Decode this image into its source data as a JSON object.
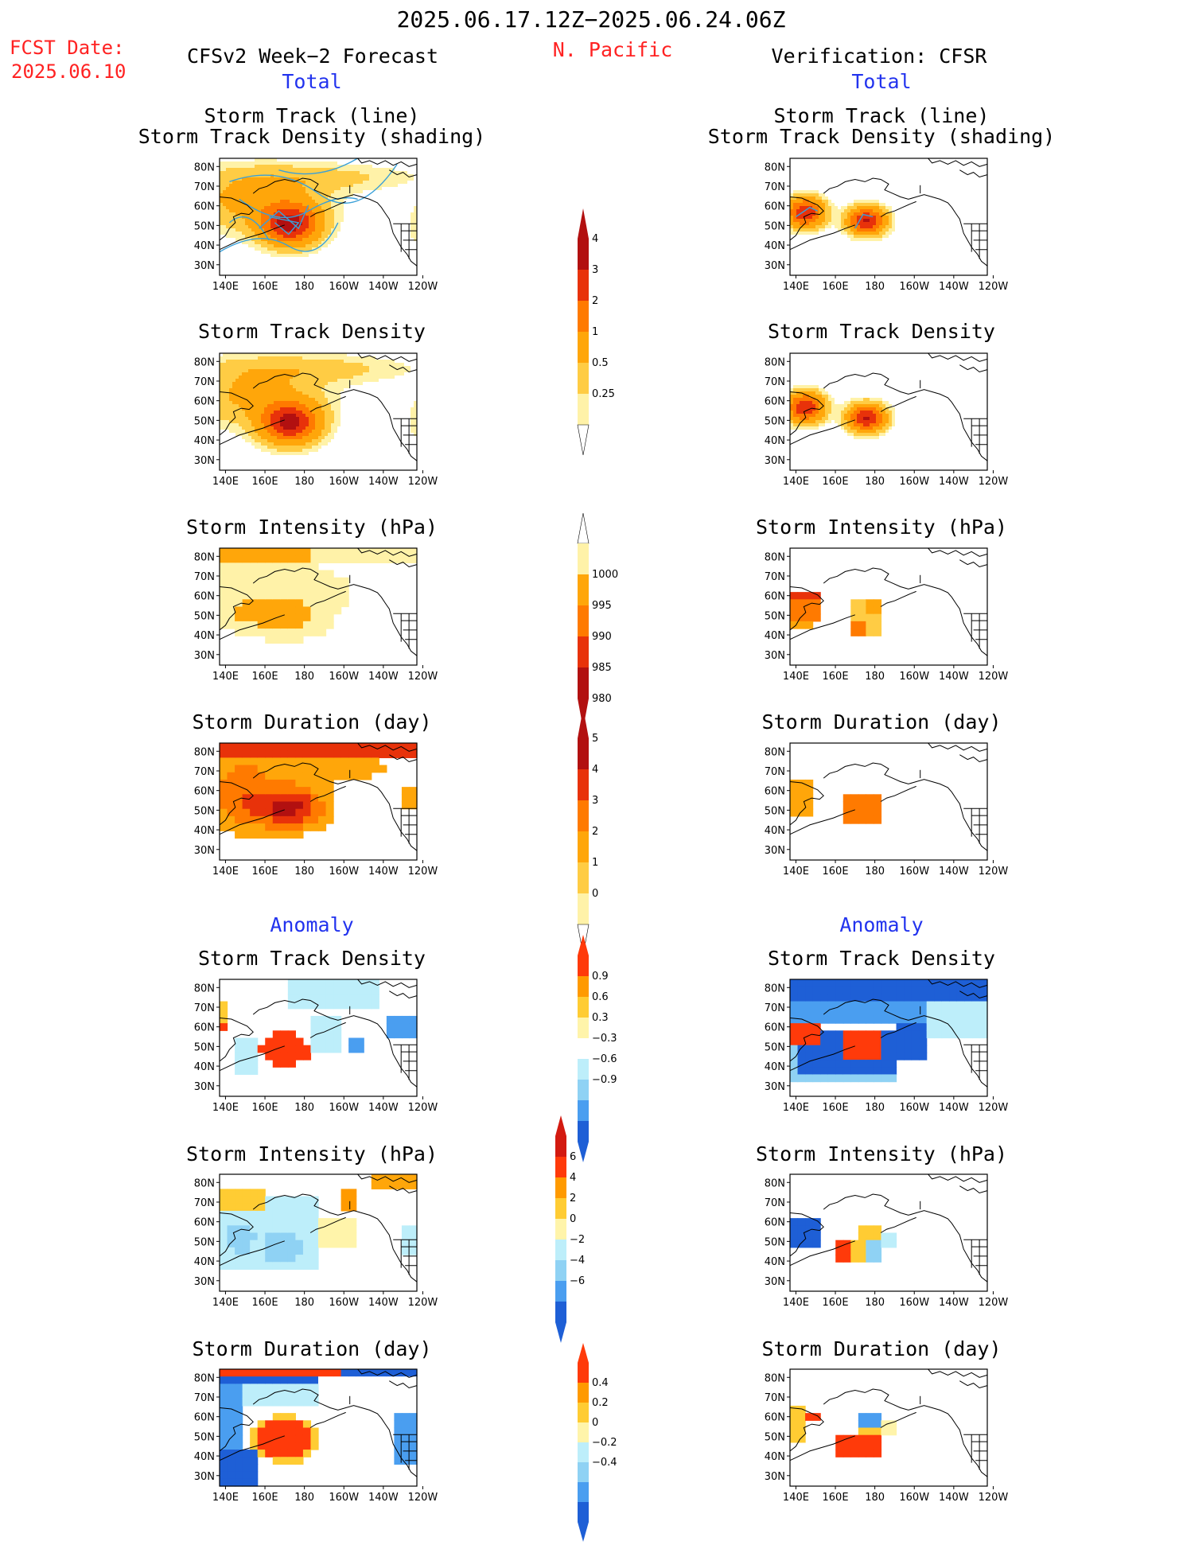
{
  "header": {
    "period": "2025.06.17.12Z−2025.06.24.06Z",
    "region": "N. Pacific",
    "fcst_label": "FCST Date:",
    "fcst_date": "2025.06.10",
    "left_title": "CFSv2 Week−2 Forecast",
    "right_title": "Verification: CFSR",
    "left_sub": "Total",
    "right_sub": "Total",
    "left_anom": "Anomaly",
    "right_anom": "Anomaly"
  },
  "axes": {
    "lat_labels": [
      "80N",
      "70N",
      "60N",
      "50N",
      "40N",
      "30N"
    ],
    "lon_labels": [
      "140E",
      "160E",
      "180",
      "160W",
      "140W",
      "120W"
    ]
  },
  "panels": {
    "l1": {
      "title1": "Storm Track (line)",
      "title2": "Storm Track Density (shading)"
    },
    "r1": {
      "title1": "Storm Track (line)",
      "title2": "Storm Track Density (shading)"
    },
    "l2": {
      "title1": "Storm Track Density"
    },
    "r2": {
      "title1": "Storm Track Density"
    },
    "l3": {
      "title1": "Storm Intensity (hPa)"
    },
    "r3": {
      "title1": "Storm Intensity (hPa)"
    },
    "l4": {
      "title1": "Storm Duration (day)"
    },
    "r4": {
      "title1": "Storm Duration (day)"
    },
    "l5": {
      "title1": "Storm Track Density"
    },
    "r5": {
      "title1": "Storm Track Density"
    },
    "l6": {
      "title1": "Storm Intensity (hPa)"
    },
    "r6": {
      "title1": "Storm Intensity (hPa)"
    },
    "l7": {
      "title1": "Storm Duration (day)"
    },
    "r7": {
      "title1": "Storm Duration (day)"
    }
  },
  "colorbars": {
    "density": {
      "labels": [
        "4",
        "3",
        "2",
        "1",
        "0.5",
        "0.25"
      ],
      "colors": [
        "#b21010",
        "#e8320a",
        "#ff7a00",
        "#ffa60a",
        "#ffcc44",
        "#fff2a8"
      ]
    },
    "intensity": {
      "labels": [
        "1000",
        "995",
        "990",
        "985",
        "980"
      ],
      "colors": [
        "#fff2a8",
        "#ffa60a",
        "#ff7a00",
        "#e8320a",
        "#b21010"
      ]
    },
    "duration": {
      "labels": [
        "5",
        "4",
        "3",
        "2",
        "1",
        "0"
      ],
      "colors": [
        "#b21010",
        "#e8320a",
        "#ff7a00",
        "#ffa60a",
        "#ffcc44",
        "#fff2a8"
      ]
    },
    "anom_density": {
      "labels": [
        "0.9",
        "0.6",
        "0.3",
        "−0.3",
        "−0.6",
        "−0.9"
      ],
      "colors": [
        "#ff3a0a",
        "#ff9a00",
        "#ffcc33",
        "#fff4aa",
        "#ffffff",
        "#bdeefa",
        "#8fd2f4",
        "#4a9ef0",
        "#1e5fd6"
      ]
    },
    "anom_intensity": {
      "labels": [
        "6",
        "4",
        "2",
        "0",
        "−2",
        "−4",
        "−6"
      ],
      "colors": [
        "#d31a10",
        "#ff3a0a",
        "#ff9a00",
        "#ffcc33",
        "#fff4aa",
        "#bdeefa",
        "#8fd2f4",
        "#4a9ef0",
        "#1e5fd6"
      ]
    },
    "anom_duration": {
      "labels": [
        "0.4",
        "0.2",
        "0",
        "−0.2",
        "−0.4"
      ],
      "colors": [
        "#ff3a0a",
        "#ff9a00",
        "#ffcc33",
        "#fff4aa",
        "#bdeefa",
        "#8fd2f4",
        "#4a9ef0",
        "#1e5fd6"
      ]
    }
  },
  "palette": {
    "dark_red": "#b21010",
    "red": "#e8320a",
    "orange": "#ff7a00",
    "lt_orange": "#ffa60a",
    "yellow": "#ffcc44",
    "pale": "#fff2a8",
    "dark_blue": "#1e5fd6",
    "blue": "#4a9ef0",
    "lt_blue": "#8fd2f4",
    "pale_blue": "#bdeefa",
    "track_line": "#3aa0d8"
  }
}
